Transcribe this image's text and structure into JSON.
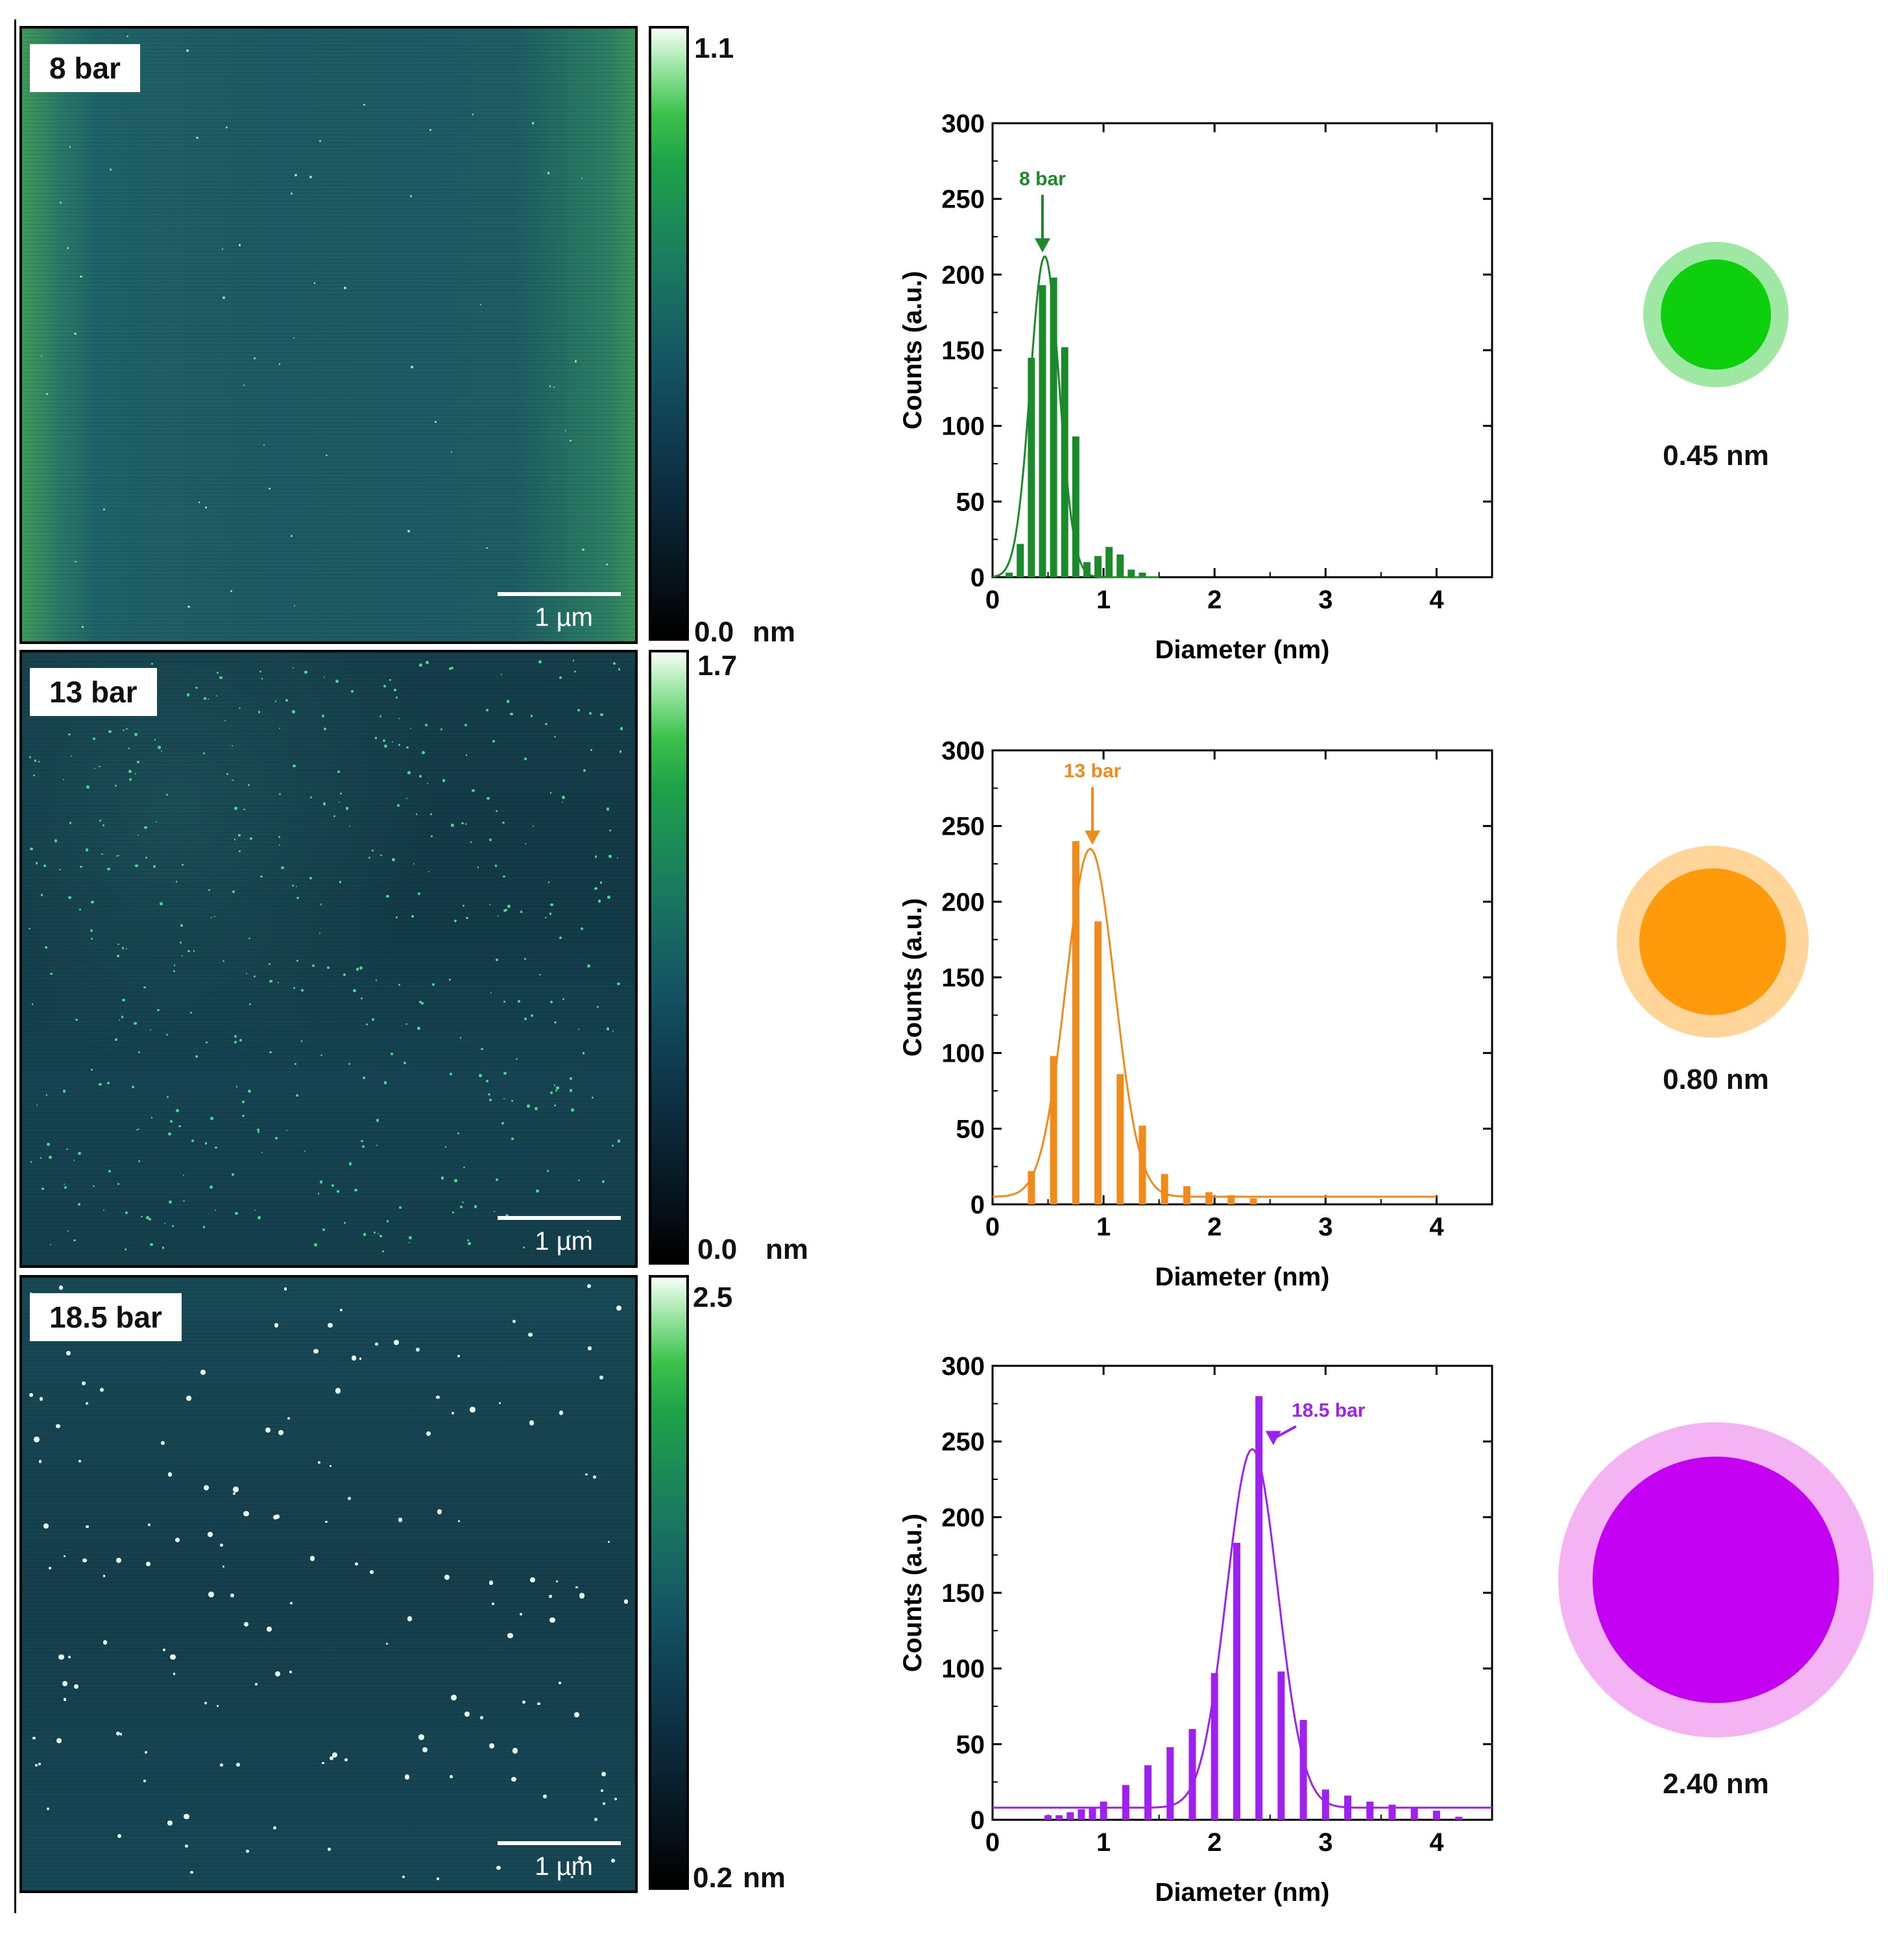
{
  "panels": [
    {
      "pressure_label": "8 bar",
      "scale_bar": "1 µm",
      "colorbar": {
        "max": "1.1",
        "min": "0.0",
        "unit": "nm"
      },
      "particle_size": "0.45 nm",
      "colors": {
        "main": "#0ecf0e",
        "halo": "#9ee8a3",
        "chart": "#1b8a2b"
      }
    },
    {
      "pressure_label": "13 bar",
      "scale_bar": "1 µm",
      "colorbar": {
        "max": "1.7",
        "min": "0.0",
        "unit": "nm"
      },
      "particle_size": "0.80 nm",
      "colors": {
        "main": "#ff9a0a",
        "halo": "#ffd59a",
        "chart": "#f08a1a"
      }
    },
    {
      "pressure_label": "18.5 bar",
      "scale_bar": "1 µm",
      "colorbar": {
        "max": "2.5",
        "min": "0.2",
        "unit": "nm"
      },
      "particle_size": "2.40 nm",
      "colors": {
        "main": "#c400f2",
        "halo": "#f4b4f4",
        "chart": "#a020f0"
      }
    }
  ],
  "chart_data": [
    {
      "type": "bar",
      "title": "",
      "annotation": "8 bar",
      "annotation_x": 0.45,
      "xlabel": "Diameter (nm)",
      "ylabel": "Counts (a.u.)",
      "xlim": [
        0,
        4.5
      ],
      "ylim": [
        0,
        300
      ],
      "xticks": [
        "0",
        "1",
        "2",
        "3",
        "4"
      ],
      "yticks": [
        "0",
        "50",
        "100",
        "150",
        "200",
        "250",
        "300"
      ],
      "x": [
        0.15,
        0.25,
        0.35,
        0.45,
        0.55,
        0.65,
        0.75,
        0.85,
        0.95,
        1.05,
        1.15,
        1.25,
        1.35
      ],
      "values": [
        3,
        22,
        145,
        193,
        198,
        152,
        93,
        10,
        14,
        20,
        15,
        5,
        3
      ],
      "fit": {
        "center": 0.47,
        "sigma": 0.13,
        "amp": 212,
        "baseline": 0,
        "x_range": [
          0.0,
          1.5
        ]
      }
    },
    {
      "type": "bar",
      "title": "",
      "annotation": "13 bar",
      "annotation_x": 0.9,
      "xlabel": "Diameter (nm)",
      "ylabel": "Counts (a.u.)",
      "xlim": [
        0,
        4.5
      ],
      "ylim": [
        0,
        300
      ],
      "xticks": [
        "0",
        "1",
        "2",
        "3",
        "4"
      ],
      "yticks": [
        "0",
        "50",
        "100",
        "150",
        "200",
        "250",
        "300"
      ],
      "x": [
        0.35,
        0.55,
        0.75,
        0.95,
        1.15,
        1.35,
        1.55,
        1.75,
        1.95,
        2.15,
        2.35
      ],
      "values": [
        22,
        98,
        240,
        187,
        86,
        52,
        20,
        12,
        8,
        6,
        4
      ],
      "fit": {
        "center": 0.88,
        "sigma": 0.22,
        "amp": 230,
        "baseline": 5,
        "x_range": [
          0.0,
          4.0
        ]
      }
    },
    {
      "type": "bar",
      "title": "",
      "annotation": "18.5 bar",
      "annotation_x": 2.5,
      "xlabel": "Diameter (nm)",
      "ylabel": "Counts (a.u.)",
      "xlim": [
        0,
        4.5
      ],
      "ylim": [
        0,
        300
      ],
      "xticks": [
        "0",
        "1",
        "2",
        "3",
        "4"
      ],
      "yticks": [
        "0",
        "50",
        "100",
        "150",
        "200",
        "250",
        "300"
      ],
      "x": [
        0.5,
        0.6,
        0.7,
        0.8,
        0.9,
        1.0,
        1.2,
        1.4,
        1.6,
        1.8,
        2.0,
        2.2,
        2.4,
        2.6,
        2.8,
        3.0,
        3.2,
        3.4,
        3.6,
        3.8,
        4.0,
        4.2
      ],
      "values": [
        3,
        3,
        5,
        7,
        8,
        12,
        23,
        36,
        48,
        60,
        97,
        183,
        280,
        98,
        66,
        20,
        16,
        12,
        10,
        8,
        6,
        2
      ],
      "fit": {
        "center": 2.34,
        "sigma": 0.23,
        "amp": 237,
        "baseline": 8,
        "x_range": [
          0.0,
          4.5
        ]
      }
    }
  ]
}
